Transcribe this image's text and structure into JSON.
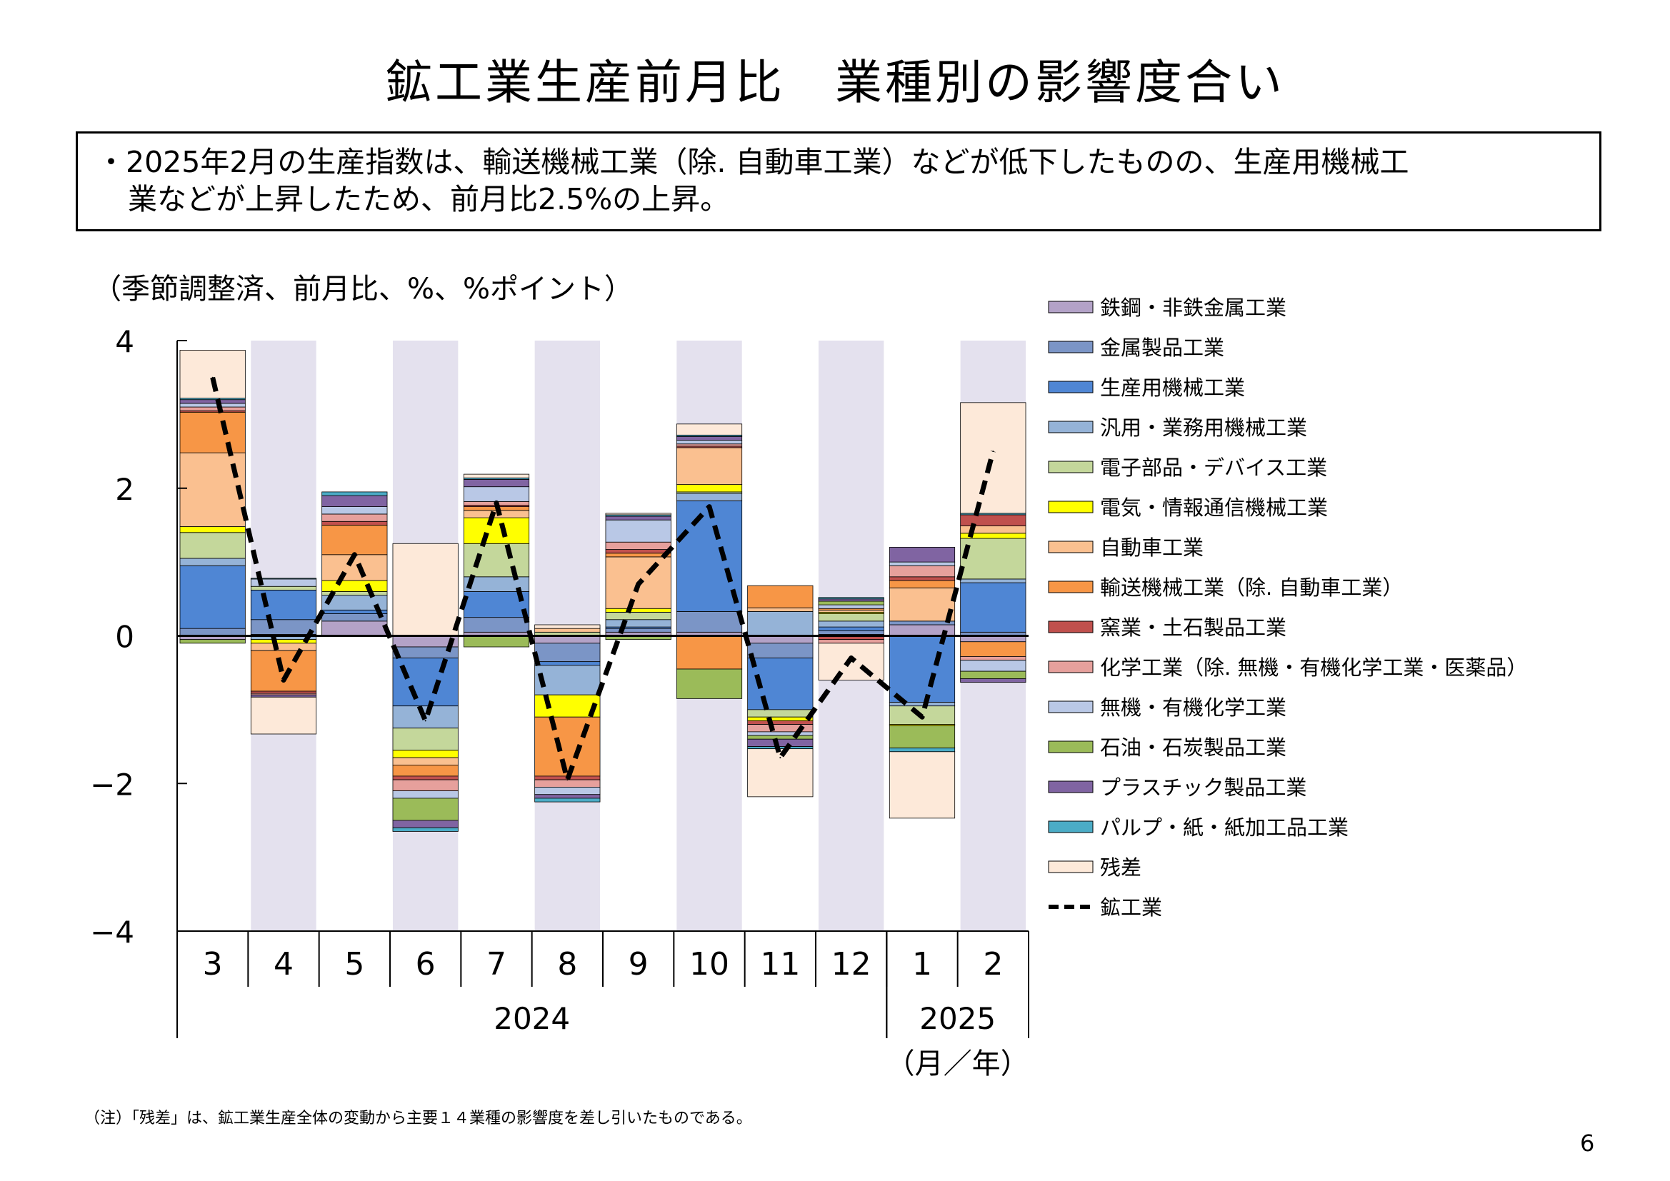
{
  "title": "鉱工業生産前月比　業種別の影響度合い",
  "summary": {
    "line1": "・2025年2月の生産指数は、輸送機械工業（除. 自動車工業）などが低下したものの、生産用機械工",
    "line2": "業などが上昇したため、前月比2.5%の上昇。"
  },
  "unit_label": "（季節調整済、前月比、%、%ポイント）",
  "note": "（注）「残差」は、鉱工業生産全体の変動から主要１４業種の影響度を差し引いたものである。",
  "page_number": "6",
  "chart_data": {
    "type": "bar",
    "stacked": true,
    "title": "",
    "xlabel": "（月／年）",
    "ylabel": "",
    "ylim": [
      -4,
      4
    ],
    "yticks": [
      "4",
      "2",
      "0",
      "−2",
      "−4"
    ],
    "categories": [
      "3",
      "4",
      "5",
      "6",
      "7",
      "8",
      "9",
      "10",
      "11",
      "12",
      "1",
      "2"
    ],
    "year_groups": [
      {
        "label": "2024",
        "start": 0,
        "end": 9
      },
      {
        "label": "2025",
        "start": 10,
        "end": 11
      }
    ],
    "shaded_categories": [
      1,
      3,
      5,
      7,
      9,
      11
    ],
    "shade_color": "#e4e1ee",
    "series": [
      {
        "name": "鉄鋼・非鉄金属工業",
        "color": "#b3a2c7",
        "values": [
          -0.05,
          0.02,
          0.2,
          -0.15,
          0.05,
          -0.1,
          0.05,
          0.05,
          -0.1,
          0.02,
          0.15,
          -0.08
        ]
      },
      {
        "name": "金属製品工業",
        "color": "#7b95c6",
        "values": [
          0.1,
          0.2,
          0.1,
          -0.15,
          0.2,
          -0.25,
          0.05,
          0.28,
          -0.2,
          0.05,
          0.05,
          0.05
        ]
      },
      {
        "name": "生産用機械工業",
        "color": "#4f86d4",
        "values": [
          0.85,
          0.4,
          0.05,
          -0.65,
          0.35,
          -0.05,
          0.02,
          1.5,
          -0.7,
          0.05,
          -0.9,
          0.67
        ]
      },
      {
        "name": "汎用・業務用機械工業",
        "color": "#95b3d7",
        "values": [
          0.1,
          -0.05,
          0.2,
          -0.3,
          0.2,
          -0.4,
          0.1,
          0.1,
          0.33,
          0.08,
          -0.05,
          0.05
        ]
      },
      {
        "name": "電子部品・デバイス工業",
        "color": "#c4d79b",
        "values": [
          0.35,
          0.05,
          0.05,
          -0.3,
          0.45,
          0.05,
          0.1,
          0.02,
          -0.1,
          0.1,
          -0.25,
          0.55
        ]
      },
      {
        "name": "電気・情報通信機械工業",
        "color": "#ffff00",
        "values": [
          0.08,
          -0.05,
          0.15,
          -0.1,
          0.35,
          -0.3,
          0.05,
          0.1,
          -0.05,
          0.02,
          -0.02,
          0.07
        ]
      },
      {
        "name": "自動車工業",
        "color": "#fac090",
        "values": [
          1.0,
          -0.1,
          0.35,
          -0.1,
          0.1,
          0.05,
          0.7,
          0.5,
          0.05,
          0.03,
          0.45,
          0.1
        ]
      },
      {
        "name": "輸送機械工業（除. 自動車工業）",
        "color": "#f79646",
        "values": [
          0.55,
          -0.55,
          0.4,
          -0.15,
          0.05,
          -0.8,
          0.05,
          -0.45,
          0.3,
          0.02,
          0.1,
          -0.2
        ]
      },
      {
        "name": "窯業・土石製品工業",
        "color": "#c0504d",
        "values": [
          0.02,
          -0.03,
          0.05,
          -0.05,
          0.02,
          -0.05,
          0.05,
          0.02,
          -0.05,
          -0.05,
          0.05,
          0.15
        ]
      },
      {
        "name": "化学工業（除. 無機・有機化学工業・医薬品）",
        "color": "#e6a09c",
        "values": [
          0.05,
          -0.02,
          0.1,
          -0.15,
          0.05,
          -0.1,
          0.1,
          0.03,
          -0.1,
          -0.05,
          0.15,
          -0.05
        ]
      },
      {
        "name": "無機・有機化学工業",
        "color": "#b9c8e6",
        "values": [
          0.05,
          0.1,
          0.1,
          -0.1,
          0.2,
          -0.1,
          0.3,
          0.05,
          -0.05,
          0.05,
          0.05,
          -0.15
        ]
      },
      {
        "name": "石油・石炭製品工業",
        "color": "#9bbb59",
        "values": [
          -0.05,
          0.0,
          0.0,
          -0.3,
          -0.15,
          0.0,
          -0.05,
          -0.4,
          -0.05,
          0.05,
          -0.3,
          -0.1
        ]
      },
      {
        "name": "プラスチック製品工業",
        "color": "#8064a2",
        "values": [
          0.05,
          -0.03,
          0.15,
          -0.1,
          0.1,
          -0.05,
          0.05,
          0.05,
          -0.1,
          0.03,
          0.2,
          -0.05
        ]
      },
      {
        "name": "パルプ・紙・紙加工品工業",
        "color": "#4bacc6",
        "values": [
          0.02,
          0.01,
          0.05,
          -0.05,
          0.02,
          -0.05,
          0.02,
          0.02,
          -0.03,
          0.02,
          -0.05,
          0.02
        ]
      },
      {
        "name": "残差",
        "color": "#fde9d9",
        "values": [
          0.65,
          -0.5,
          0.0,
          1.25,
          0.05,
          0.05,
          0.02,
          0.15,
          -0.65,
          -0.5,
          -0.9,
          1.5
        ]
      }
    ],
    "line_series": {
      "name": "鉱工業",
      "color": "#000000",
      "style": "dashed",
      "values": [
        3.5,
        -0.6,
        1.1,
        -1.15,
        1.8,
        -1.95,
        0.7,
        1.75,
        -1.65,
        -0.3,
        -1.1,
        2.5
      ]
    },
    "legend_position": "right",
    "grid": false
  }
}
